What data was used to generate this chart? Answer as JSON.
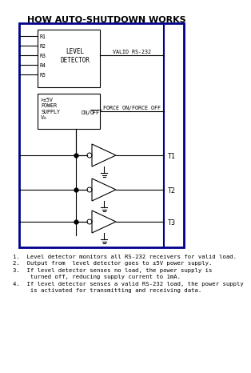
{
  "title": "HOW AUTO-SHUTDOWN WORKS",
  "title_fontsize": 8,
  "bg_color": "#ffffff",
  "border_color": "#00008B",
  "text_color": "#000000",
  "level_detector_inputs": [
    "R1",
    "R2",
    "R3",
    "R4",
    "R5"
  ],
  "valid_rs232_label": "VALID RS-232",
  "force_on_off_label": "FORCE ON/FORCE OFF",
  "transmitters": [
    "T1",
    "T2",
    "T3"
  ],
  "notes": [
    "1.  Level detector monitors all RS-232 receivers for valid load.",
    "2.  Output from  level detector goes to ±5V power supply.",
    "3.  If level detector senses no load, the power supply is",
    "     turned off, reducing supply current to 1mA.",
    "4.  If level detector senses a valid RS-232 load, the power supply",
    "     is activated for transmitting and receiving data."
  ],
  "note_fontsize": 5.2,
  "main_fontsize": 5.5,
  "small_fontsize": 4.8
}
